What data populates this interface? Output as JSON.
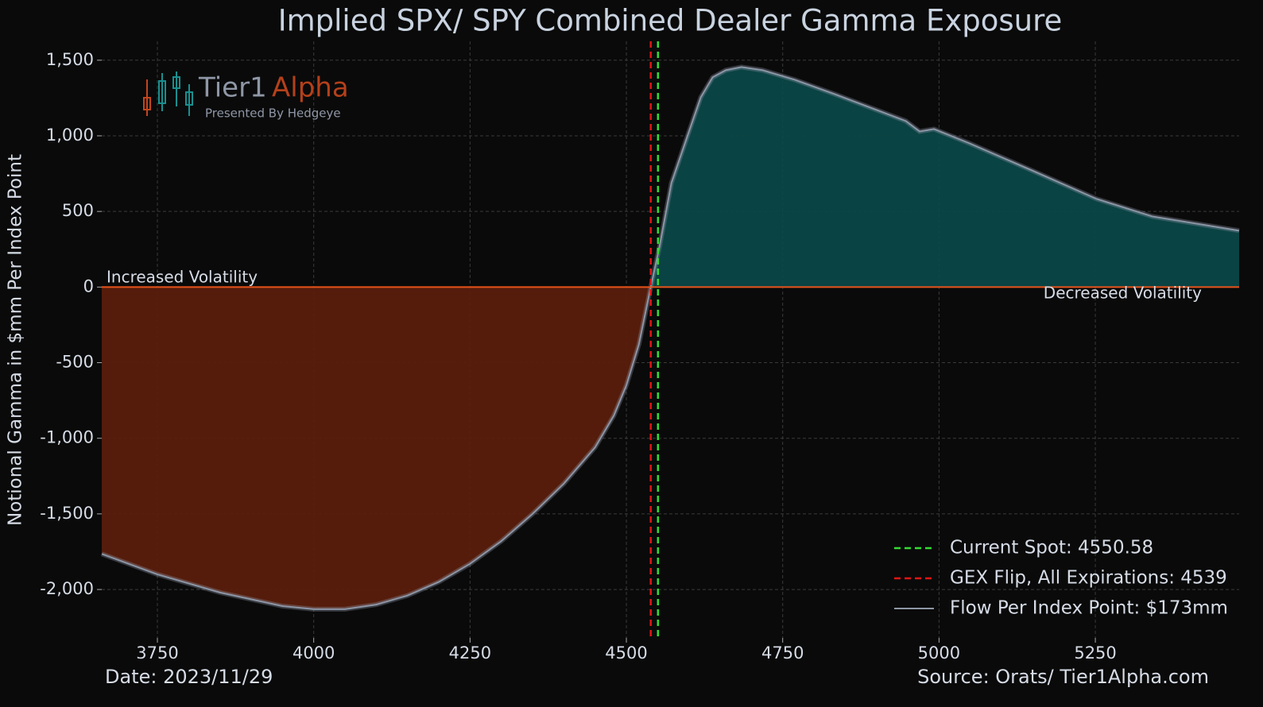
{
  "chart_data": {
    "type": "area",
    "title": "Implied SPX/ SPY Combined Dealer Gamma Exposure",
    "ylabel": "Notional Gamma in $mm Per Index Point",
    "xlim": [
      3661,
      5480
    ],
    "ylim": [
      -2320,
      1625
    ],
    "xticks": [
      3750,
      4000,
      4250,
      4500,
      4750,
      5000,
      5250
    ],
    "yticks": [
      {
        "value": 1500,
        "label": "1,500"
      },
      {
        "value": 1000,
        "label": "1,000"
      },
      500,
      0,
      -500,
      {
        "value": -1000,
        "label": "-1,000"
      },
      {
        "value": -1500,
        "label": "-1,500"
      },
      {
        "value": -2000,
        "label": "-2,000"
      }
    ],
    "grid": true,
    "x": [
      3661,
      3750,
      3850,
      3950,
      4000,
      4050,
      4100,
      4150,
      4200,
      4250,
      4300,
      4350,
      4400,
      4450,
      4480,
      4500,
      4520,
      4539,
      4553,
      4572,
      4598,
      4619,
      4638,
      4659,
      4684,
      4718,
      4769,
      4833,
      4897,
      4947,
      4969,
      4992,
      5049,
      5151,
      5252,
      5341,
      5480
    ],
    "series": [
      {
        "name": "Flow Per Index Point: $173mm",
        "color": "#8d96a6",
        "values": [
          -1765,
          -1900,
          -2020,
          -2110,
          -2130,
          -2130,
          -2100,
          -2040,
          -1950,
          -1830,
          -1680,
          -1500,
          -1300,
          -1060,
          -850,
          -650,
          -380,
          0,
          268,
          688,
          1003,
          1255,
          1387,
          1434,
          1455,
          1434,
          1371,
          1276,
          1176,
          1098,
          1029,
          1045,
          950,
          767,
          583,
          467,
          373
        ]
      }
    ],
    "vlines": [
      {
        "name": "Current Spot: 4550.58",
        "value": 4550.58,
        "color": "#33dd33"
      },
      {
        "name": "GEX Flip, All Expirations: 4539",
        "value": 4539,
        "color": "#e01515"
      }
    ],
    "zero_line_color": "#e8531a",
    "positive_fill": "#0b4747",
    "negative_fill": "#5a1e0c",
    "legend": "lower right",
    "annotations": {
      "left": "Increased Volatility",
      "right": "Decreased Volatility",
      "date": "Date: 2023/11/29",
      "source": "Source: Orats/ Tier1Alpha.com"
    },
    "logo": {
      "name1": "Tier1",
      "name2": "Alpha",
      "tagline": "Presented By Hedgeye"
    }
  }
}
